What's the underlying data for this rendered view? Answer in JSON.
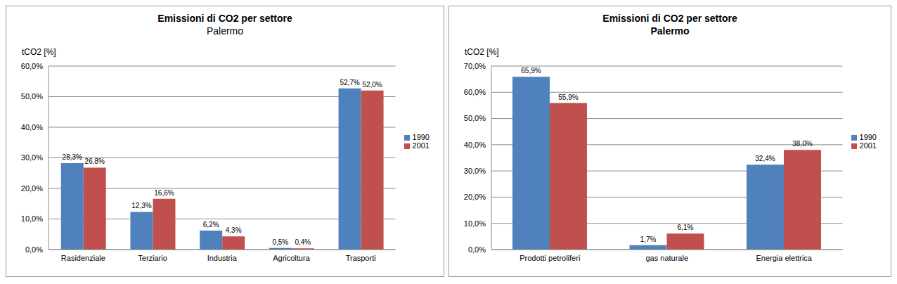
{
  "chart_data": [
    {
      "type": "bar",
      "title": "Emissioni di CO2 per settore",
      "subtitle": "Palermo",
      "y_label": "tCO2 [%]",
      "categories": [
        "Rasidenziale",
        "Terziario",
        "Industria",
        "Agricoltura",
        "Trasporti"
      ],
      "series": [
        {
          "name": "1990",
          "color": "#4f81bd",
          "values": [
            28.3,
            12.3,
            6.2,
            0.5,
            52.7
          ],
          "value_labels": [
            "28,3%",
            "12,3%",
            "6,2%",
            "0,5%",
            "52,7%"
          ]
        },
        {
          "name": "2001",
          "color": "#c0504d",
          "values": [
            26.8,
            16.6,
            4.3,
            0.4,
            52.0
          ],
          "value_labels": [
            "26,8%",
            "16,6%",
            "4,3%",
            "0,4%",
            "52,0%"
          ]
        }
      ],
      "ylim": [
        0,
        60
      ],
      "yticks": [
        {
          "value": 0,
          "label": "0,0%"
        },
        {
          "value": 10,
          "label": "10,0%"
        },
        {
          "value": 20,
          "label": "20,0%"
        },
        {
          "value": 30,
          "label": "30,0%"
        },
        {
          "value": 40,
          "label": "40,0%"
        },
        {
          "value": 50,
          "label": "50,0%"
        },
        {
          "value": 60,
          "label": "60,0%"
        }
      ],
      "grid": true,
      "legend": "right",
      "data_labels": true
    },
    {
      "type": "bar",
      "title": "Emissioni di CO2 per settore",
      "subtitle": "Palermo",
      "y_label": "tCO2 [%]",
      "categories": [
        "Prodotti petroliferi",
        "gas naturale",
        "Energia elettrica"
      ],
      "series": [
        {
          "name": "1990",
          "color": "#4f81bd",
          "values": [
            65.9,
            1.7,
            32.4
          ],
          "value_labels": [
            "65,9%",
            "1,7%",
            "32,4%"
          ]
        },
        {
          "name": "2001",
          "color": "#c0504d",
          "values": [
            55.9,
            6.1,
            38.0
          ],
          "value_labels": [
            "55,9%",
            "6,1%",
            "38,0%"
          ]
        }
      ],
      "ylim": [
        0,
        70
      ],
      "yticks": [
        {
          "value": 0,
          "label": "0,0%"
        },
        {
          "value": 10,
          "label": "10,0%"
        },
        {
          "value": 20,
          "label": "20,0%"
        },
        {
          "value": 30,
          "label": "30,0%"
        },
        {
          "value": 40,
          "label": "40,0%"
        },
        {
          "value": 50,
          "label": "50,0%"
        },
        {
          "value": 60,
          "label": "60,0%"
        },
        {
          "value": 70,
          "label": "70,0%"
        }
      ],
      "grid": true,
      "legend": "right",
      "data_labels": true
    }
  ]
}
